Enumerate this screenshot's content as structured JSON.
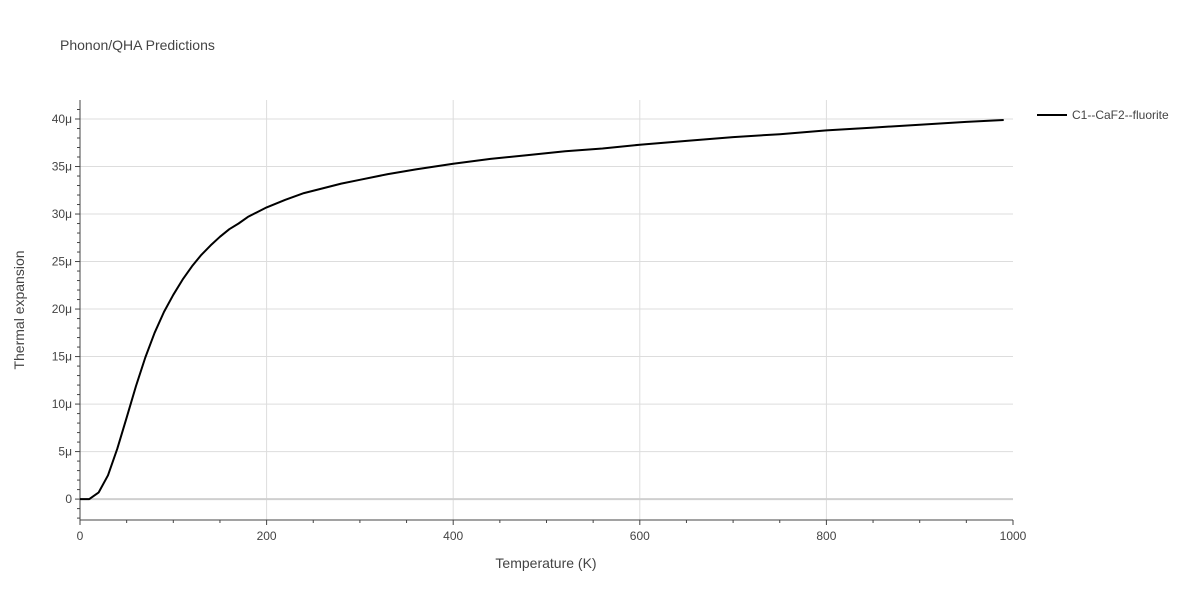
{
  "chart_data": {
    "type": "line",
    "title": "Phonon/QHA Predictions",
    "xlabel": "Temperature (K)",
    "ylabel": "Thermal expansion",
    "xlim": [
      0,
      1000
    ],
    "ylim": [
      -2.2,
      42
    ],
    "x_ticks": [
      0,
      200,
      400,
      600,
      800,
      1000
    ],
    "y_ticks": [
      0,
      5,
      10,
      15,
      20,
      25,
      30,
      35,
      40
    ],
    "x_tick_labels": [
      "0",
      "200",
      "400",
      "600",
      "800",
      "1000"
    ],
    "y_tick_labels": [
      "0",
      "5μ",
      "10μ",
      "15μ",
      "20μ",
      "25μ",
      "30μ",
      "35μ",
      "40μ"
    ],
    "y_unit_note": "",
    "grid": true,
    "legend_position": "top-right",
    "series": [
      {
        "name": "C1--CaF2--fluorite",
        "color": "#000000",
        "x": [
          0,
          10,
          20,
          30,
          40,
          50,
          60,
          70,
          80,
          90,
          100,
          110,
          120,
          130,
          140,
          150,
          160,
          170,
          180,
          190,
          200,
          220,
          240,
          260,
          280,
          300,
          330,
          360,
          400,
          440,
          480,
          520,
          560,
          600,
          650,
          700,
          750,
          800,
          850,
          900,
          950,
          990
        ],
        "y": [
          0,
          0,
          0.7,
          2.5,
          5.3,
          8.6,
          11.9,
          14.9,
          17.5,
          19.7,
          21.5,
          23.1,
          24.5,
          25.7,
          26.7,
          27.6,
          28.4,
          29.0,
          29.7,
          30.2,
          30.7,
          31.5,
          32.2,
          32.7,
          33.2,
          33.6,
          34.2,
          34.7,
          35.3,
          35.8,
          36.2,
          36.6,
          36.9,
          37.3,
          37.7,
          38.1,
          38.4,
          38.8,
          39.1,
          39.4,
          39.7,
          39.9
        ]
      }
    ]
  }
}
